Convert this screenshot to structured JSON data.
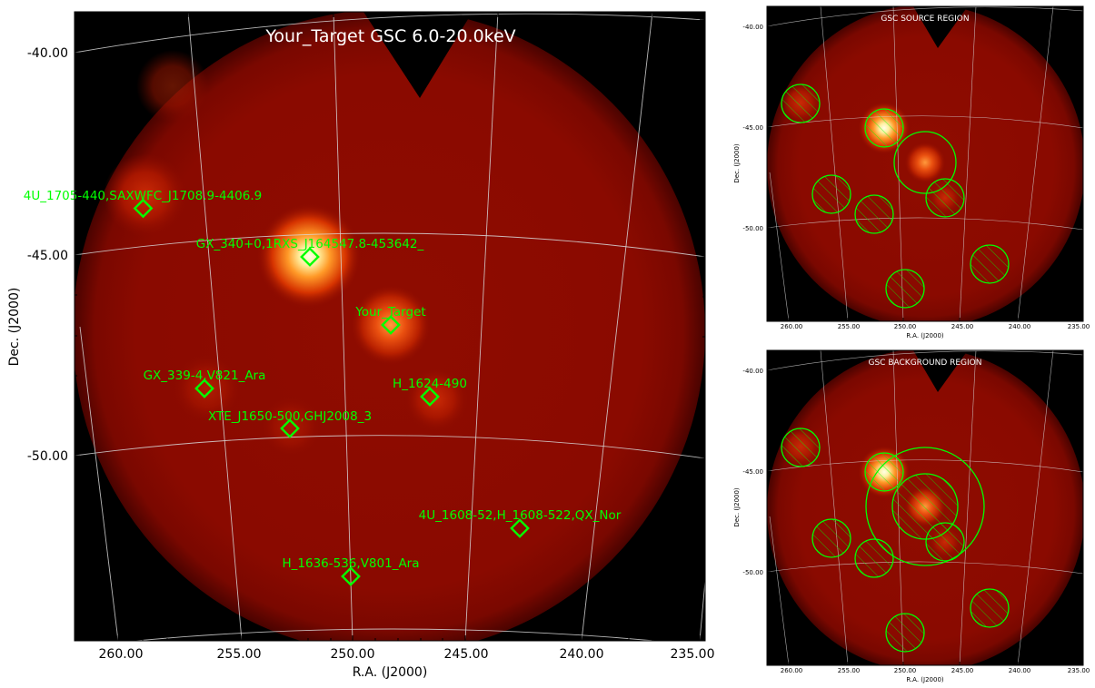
{
  "main": {
    "title": "Your_Target GSC 6.0-20.0keV",
    "xlabel": "R.A. (J2000)",
    "ylabel": "Dec. (J2000)",
    "xticks": [
      "260.00",
      "255.00",
      "250.00",
      "245.00",
      "240.00",
      "235.00"
    ],
    "yticks": [
      "-40.00",
      "-45.00",
      "-50.00"
    ],
    "sources": [
      {
        "label": "4U_1705-440,SAXWFC_J1708.9-4406.9"
      },
      {
        "label": "GX_340+0,1RXS_J164547.8-453642_"
      },
      {
        "label": "Your_Target"
      },
      {
        "label": "GX_339-4,V821_Ara"
      },
      {
        "label": "H_1624-490"
      },
      {
        "label": "XTE_J1650-500,GHJ2008_3"
      },
      {
        "label": "4U_1608-52,H_1608-522,QX_Nor"
      },
      {
        "label": "H_1636-536,V801_Ara"
      }
    ]
  },
  "source_panel": {
    "title": "GSC SOURCE REGION",
    "xlabel": "R.A. (J2000)",
    "ylabel": "Dec. (J2000)",
    "xticks": [
      "260.00",
      "255.00",
      "250.00",
      "245.00",
      "240.00",
      "235.00"
    ],
    "yticks": [
      "-40.00",
      "-45.00",
      "-50.00"
    ]
  },
  "background_panel": {
    "title": "GSC BACKGROUND REGION",
    "xlabel": "R.A. (J2000)",
    "ylabel": "Dec. (J2000)",
    "xticks": [
      "260.00",
      "255.00",
      "250.00",
      "245.00",
      "240.00",
      "235.00"
    ],
    "yticks": [
      "-40.00",
      "-45.00",
      "-50.00"
    ]
  },
  "colors": {
    "marker": "#00ff00",
    "background_sky": "#8b0000",
    "frame": "#000000"
  }
}
